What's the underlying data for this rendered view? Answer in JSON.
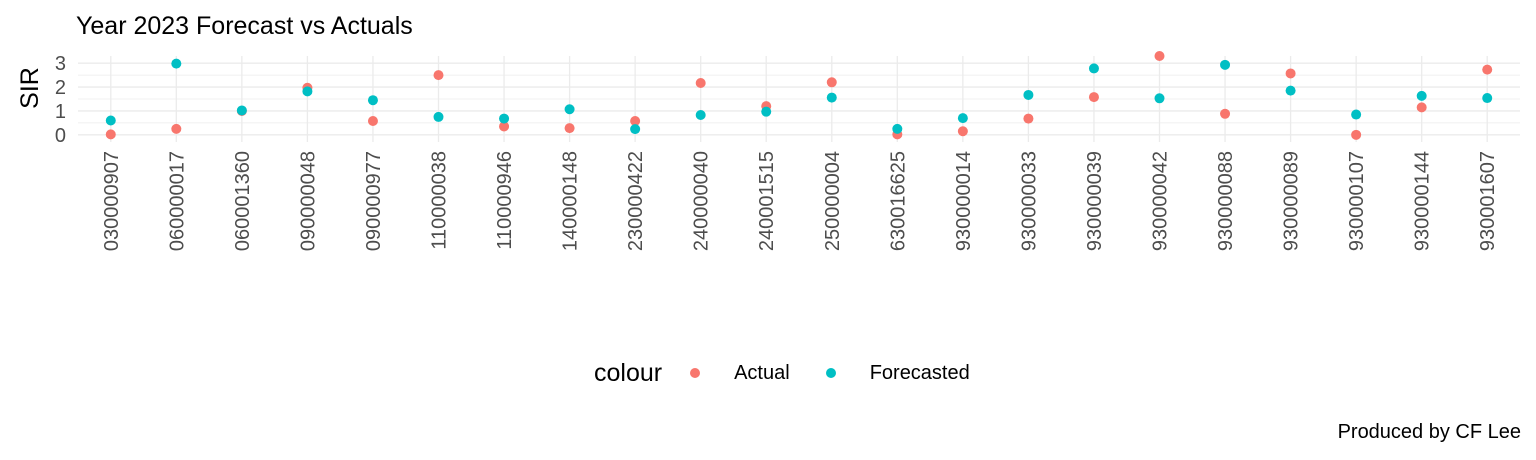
{
  "chart_data": {
    "type": "scatter",
    "title": "Year 2023 Forecast vs Actuals",
    "xlabel": "",
    "ylabel": "SIR",
    "categories": [
      "030000907",
      "060000017",
      "060001360",
      "090000048",
      "090000977",
      "110000038",
      "110000946",
      "140000148",
      "230000422",
      "240000040",
      "240001515",
      "250000004",
      "630016625",
      "930000014",
      "930000033",
      "930000039",
      "930000042",
      "930000088",
      "930000089",
      "930000107",
      "930000144",
      "930001607"
    ],
    "y_ticks": [
      0,
      1,
      2,
      3
    ],
    "ylim": [
      -0.3,
      3.3
    ],
    "grid": true,
    "legend_position": "bottom",
    "legend_title": "colour",
    "series": [
      {
        "name": "Actual",
        "color": "#F8766D",
        "values": [
          0.02,
          0.25,
          1.0,
          1.97,
          0.58,
          2.5,
          0.35,
          0.28,
          0.58,
          2.17,
          1.2,
          2.2,
          0.02,
          0.15,
          0.68,
          1.58,
          3.3,
          0.88,
          2.57,
          0.0,
          1.15,
          2.73
        ]
      },
      {
        "name": "Forecasted",
        "color": "#00BFC4",
        "values": [
          0.6,
          2.98,
          1.02,
          1.82,
          1.45,
          0.75,
          0.68,
          1.07,
          0.24,
          0.83,
          0.97,
          1.56,
          0.25,
          0.7,
          1.67,
          2.78,
          1.53,
          2.93,
          1.85,
          0.85,
          1.63,
          1.54
        ]
      }
    ]
  },
  "caption": "Produced by CF Lee"
}
